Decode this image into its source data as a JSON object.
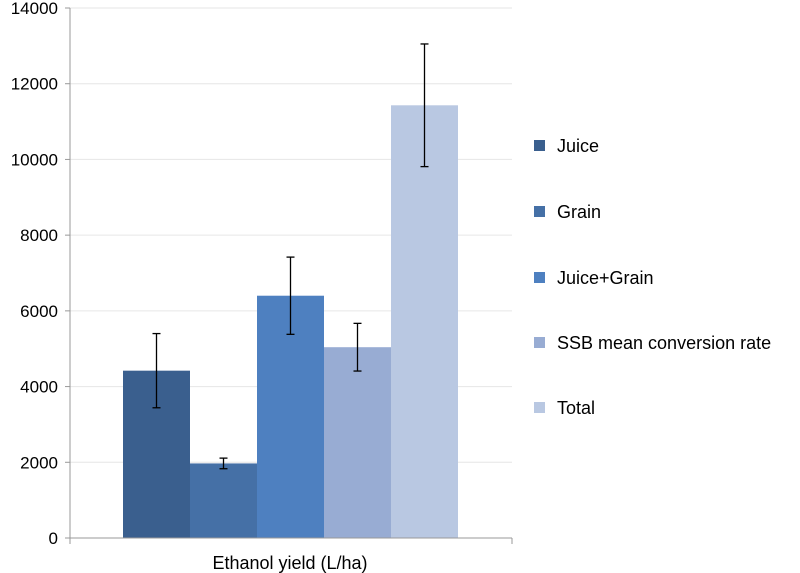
{
  "chart_data": {
    "type": "bar",
    "xlabel": "Ethanol yield (L/ha)",
    "ylabel": "",
    "ylim": [
      0,
      14000
    ],
    "yticks": [
      0,
      2000,
      4000,
      6000,
      8000,
      10000,
      12000,
      14000
    ],
    "grid": true,
    "legend_position": "right",
    "series": [
      {
        "name": "Juice",
        "value": 4420,
        "error": 980,
        "color": "#3a5f8e"
      },
      {
        "name": "Grain",
        "value": 1970,
        "error": 140,
        "color": "#4570a6"
      },
      {
        "name": "Juice+Grain",
        "value": 6400,
        "error": 1020,
        "color": "#4e80c0"
      },
      {
        "name": "SSB mean conversion rate",
        "value": 5040,
        "error": 630,
        "color": "#98acd3"
      },
      {
        "name": "Total",
        "value": 11430,
        "error": 1620,
        "color": "#b9c8e2"
      }
    ]
  }
}
